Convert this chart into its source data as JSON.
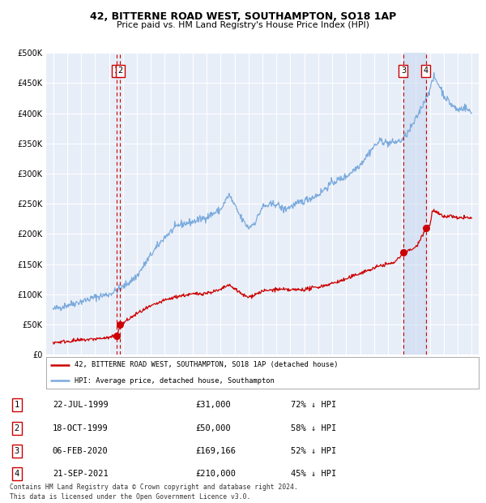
{
  "title1": "42, BITTERNE ROAD WEST, SOUTHAMPTON, SO18 1AP",
  "title2": "Price paid vs. HM Land Registry's House Price Index (HPI)",
  "background_color": "#ffffff",
  "plot_bg_color": "#e8eef8",
  "grid_color": "#ffffff",
  "legend_label_red": "42, BITTERNE ROAD WEST, SOUTHAMPTON, SO18 1AP (detached house)",
  "legend_label_blue": "HPI: Average price, detached house, Southampton",
  "footer1": "Contains HM Land Registry data © Crown copyright and database right 2024.",
  "footer2": "This data is licensed under the Open Government Licence v3.0.",
  "transactions": [
    {
      "num": 1,
      "date": "22-JUL-1999",
      "price": 31000,
      "pct": "72%",
      "dir": "↓",
      "x_year": 1999.55
    },
    {
      "num": 2,
      "date": "18-OCT-1999",
      "price": 50000,
      "pct": "58%",
      "dir": "↓",
      "x_year": 1999.8
    },
    {
      "num": 3,
      "date": "06-FEB-2020",
      "price": 169166,
      "pct": "52%",
      "dir": "↓",
      "x_year": 2020.1
    },
    {
      "num": 4,
      "date": "21-SEP-2021",
      "price": 210000,
      "pct": "45%",
      "dir": "↓",
      "x_year": 2021.72
    }
  ],
  "vline_color": "#cc0000",
  "dot_color": "#cc0000",
  "hpi_color": "#7aaadd",
  "price_color": "#cc0000",
  "ylim": [
    0,
    500000
  ],
  "xlim_start": 1994.5,
  "xlim_end": 2025.5,
  "highlight_shade": "#c8d8f0",
  "hpi_anchors": [
    [
      1995.0,
      75000
    ],
    [
      1996.0,
      82000
    ],
    [
      1997.0,
      88000
    ],
    [
      1998.0,
      95000
    ],
    [
      1999.0,
      100000
    ],
    [
      2000.0,
      112000
    ],
    [
      2001.0,
      130000
    ],
    [
      2002.0,
      165000
    ],
    [
      2003.0,
      195000
    ],
    [
      2004.0,
      215000
    ],
    [
      2005.0,
      220000
    ],
    [
      2006.0,
      228000
    ],
    [
      2007.0,
      240000
    ],
    [
      2007.6,
      265000
    ],
    [
      2008.5,
      225000
    ],
    [
      2009.0,
      210000
    ],
    [
      2009.5,
      220000
    ],
    [
      2010.0,
      245000
    ],
    [
      2011.0,
      250000
    ],
    [
      2011.5,
      240000
    ],
    [
      2012.0,
      245000
    ],
    [
      2012.5,
      250000
    ],
    [
      2013.0,
      255000
    ],
    [
      2014.0,
      265000
    ],
    [
      2015.0,
      285000
    ],
    [
      2016.0,
      295000
    ],
    [
      2017.0,
      315000
    ],
    [
      2017.5,
      330000
    ],
    [
      2018.0,
      345000
    ],
    [
      2018.5,
      355000
    ],
    [
      2019.0,
      350000
    ],
    [
      2019.5,
      352000
    ],
    [
      2020.0,
      355000
    ],
    [
      2020.5,
      370000
    ],
    [
      2021.0,
      390000
    ],
    [
      2021.5,
      415000
    ],
    [
      2022.0,
      440000
    ],
    [
      2022.3,
      460000
    ],
    [
      2022.7,
      445000
    ],
    [
      2023.0,
      430000
    ],
    [
      2023.5,
      415000
    ],
    [
      2024.0,
      405000
    ],
    [
      2024.5,
      410000
    ],
    [
      2025.0,
      400000
    ]
  ],
  "price_anchors": [
    [
      1995.0,
      20000
    ],
    [
      1996.0,
      22000
    ],
    [
      1997.0,
      24000
    ],
    [
      1998.0,
      26000
    ],
    [
      1999.0,
      28000
    ],
    [
      1999.55,
      31000
    ],
    [
      1999.8,
      50000
    ],
    [
      2000.0,
      52000
    ],
    [
      2001.0,
      68000
    ],
    [
      2002.0,
      80000
    ],
    [
      2003.0,
      90000
    ],
    [
      2004.0,
      97000
    ],
    [
      2005.0,
      100000
    ],
    [
      2006.0,
      102000
    ],
    [
      2007.0,
      107000
    ],
    [
      2007.5,
      115000
    ],
    [
      2008.0,
      110000
    ],
    [
      2008.5,
      100000
    ],
    [
      2009.0,
      95000
    ],
    [
      2009.5,
      100000
    ],
    [
      2010.0,
      105000
    ],
    [
      2011.0,
      108000
    ],
    [
      2012.0,
      107000
    ],
    [
      2013.0,
      108000
    ],
    [
      2014.0,
      112000
    ],
    [
      2015.0,
      118000
    ],
    [
      2016.0,
      125000
    ],
    [
      2017.0,
      135000
    ],
    [
      2018.0,
      143000
    ],
    [
      2018.5,
      148000
    ],
    [
      2019.0,
      150000
    ],
    [
      2019.5,
      153000
    ],
    [
      2020.1,
      169166
    ],
    [
      2020.5,
      172000
    ],
    [
      2021.0,
      178000
    ],
    [
      2021.72,
      210000
    ],
    [
      2022.0,
      215000
    ],
    [
      2022.2,
      240000
    ],
    [
      2022.5,
      235000
    ],
    [
      2023.0,
      228000
    ],
    [
      2023.5,
      230000
    ],
    [
      2024.0,
      225000
    ],
    [
      2024.5,
      228000
    ],
    [
      2025.0,
      225000
    ]
  ]
}
